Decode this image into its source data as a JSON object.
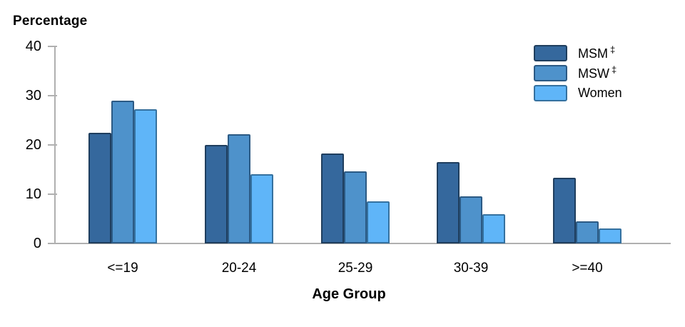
{
  "chart_data": {
    "type": "bar",
    "title": "Percentage",
    "xlabel": "Age Group",
    "ylabel": "Percentage",
    "categories": [
      "<=19",
      "20-24",
      "25-29",
      "30-39",
      ">=40"
    ],
    "series": [
      {
        "name": "MSM",
        "superscript": "‡",
        "color": "#35689D",
        "border_color": "#1F3E5E",
        "values": [
          22.5,
          20.0,
          18.3,
          16.5,
          13.3
        ]
      },
      {
        "name": "MSW",
        "superscript": "‡",
        "color": "#4E92CB",
        "border_color": "#2C5A84",
        "values": [
          29.0,
          22.2,
          14.7,
          9.6,
          4.5
        ]
      },
      {
        "name": "Women",
        "superscript": "",
        "color": "#5FB5F8",
        "border_color": "#35719F",
        "values": [
          27.3,
          14.0,
          8.5,
          6.0,
          3.0
        ]
      }
    ],
    "ylim": [
      0,
      40
    ],
    "yticks": [
      0,
      10,
      20,
      30,
      40
    ],
    "grid": false,
    "legend_position": "top-right",
    "axis_color": "#B0B0B0",
    "text_color": "#000000"
  }
}
